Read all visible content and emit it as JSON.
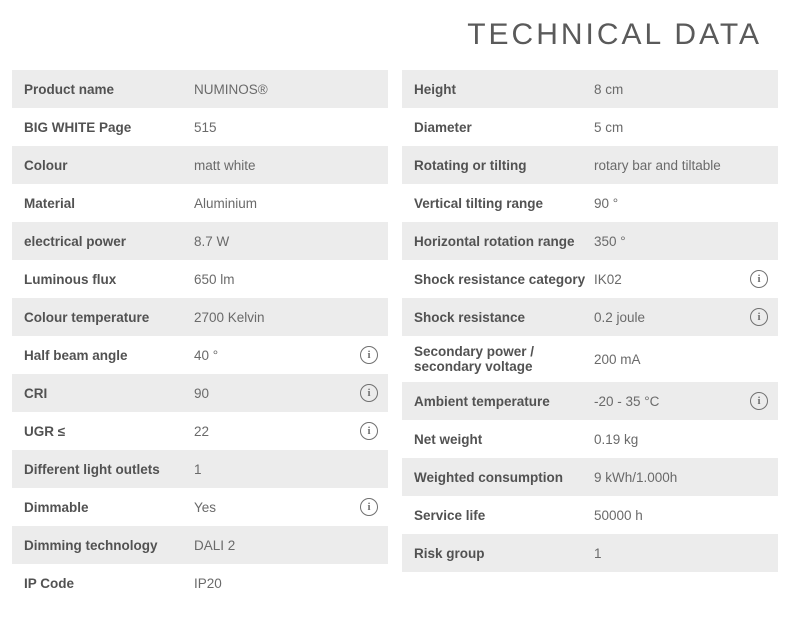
{
  "title": "TECHNICAL DATA",
  "left": [
    {
      "label": "Product name",
      "value": "NUMINOS®",
      "info": false
    },
    {
      "label": "BIG WHITE Page",
      "value": "515",
      "info": false
    },
    {
      "label": "Colour",
      "value": "matt white",
      "info": false
    },
    {
      "label": "Material",
      "value": "Aluminium",
      "info": false
    },
    {
      "label": "electrical power",
      "value": "8.7 W",
      "info": false
    },
    {
      "label": "Luminous flux",
      "value": "650 lm",
      "info": false
    },
    {
      "label": "Colour temperature",
      "value": "2700 Kelvin",
      "info": false
    },
    {
      "label": "Half beam angle",
      "value": "40 °",
      "info": true
    },
    {
      "label": "CRI",
      "value": "90",
      "info": true
    },
    {
      "label": "UGR ≤",
      "value": "22",
      "info": true
    },
    {
      "label": "Different light outlets",
      "value": "1",
      "info": false
    },
    {
      "label": "Dimmable",
      "value": "Yes",
      "info": true
    },
    {
      "label": "Dimming technology",
      "value": "DALI 2",
      "info": false
    },
    {
      "label": "IP Code",
      "value": "IP20",
      "info": false
    }
  ],
  "right": [
    {
      "label": "Height",
      "value": "8 cm",
      "info": false
    },
    {
      "label": "Diameter",
      "value": "5 cm",
      "info": false
    },
    {
      "label": "Rotating or tilting",
      "value": "rotary bar and tiltable",
      "info": false
    },
    {
      "label": "Vertical tilting range",
      "value": "90 °",
      "info": false
    },
    {
      "label": "Horizontal rotation range",
      "value": "350 °",
      "info": false
    },
    {
      "label": "Shock resistance category",
      "value": "IK02",
      "info": true
    },
    {
      "label": "Shock resistance",
      "value": "0.2 joule",
      "info": true
    },
    {
      "label": "Secondary power / secondary voltage",
      "value": "200 mA",
      "info": false
    },
    {
      "label": "Ambient temperature",
      "value": "-20 - 35 °C",
      "info": true
    },
    {
      "label": "Net weight",
      "value": "0.19 kg",
      "info": false
    },
    {
      "label": "Weighted consumption",
      "value": "9 kWh/1.000h",
      "info": false
    },
    {
      "label": "Service life",
      "value": "50000 h",
      "info": false
    },
    {
      "label": "Risk group",
      "value": "1",
      "info": false
    }
  ],
  "colors": {
    "alt_row_bg": "#ececec",
    "text_label": "#525252",
    "text_value": "#6a6a6a",
    "title_color": "#5a5a5a",
    "icon_border": "#707070"
  }
}
